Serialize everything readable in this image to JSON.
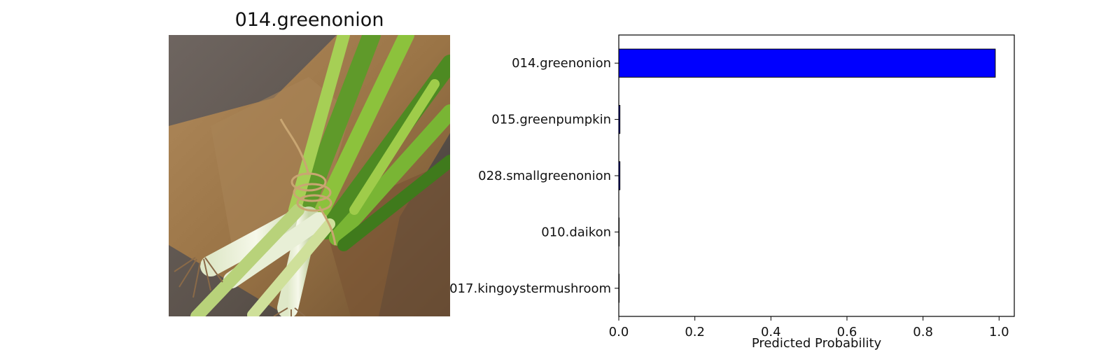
{
  "image_panel": {
    "title": "014.greenonion",
    "photo_subject": "green onions tied with twine on burlap"
  },
  "colors": {
    "bar_fill": "#0000ff",
    "bar_edge": "#000000",
    "background": "#ffffff"
  },
  "chart_data": {
    "type": "bar",
    "orientation": "horizontal",
    "categories": [
      "014.greenonion",
      "015.greenpumpkin",
      "028.smallgreenonion",
      "010.daikon",
      "017.kingoystermushroom"
    ],
    "values": [
      0.99,
      0.003,
      0.003,
      0.001,
      0.001
    ],
    "title": "",
    "xlabel": "Predicted Probability",
    "ylabel": "",
    "xlim": [
      0,
      1.04
    ],
    "xticks": [
      "0.0",
      "0.2",
      "0.4",
      "0.6",
      "0.8",
      "1.0"
    ],
    "grid": false
  }
}
